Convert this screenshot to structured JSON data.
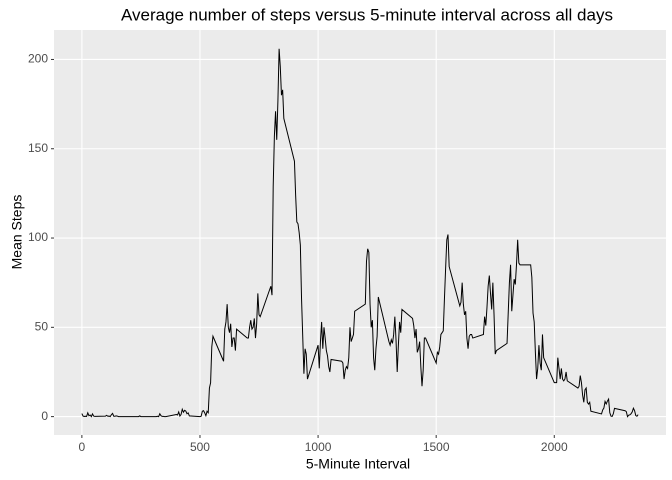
{
  "chart_data": {
    "type": "line",
    "title": "Average number of steps versus 5-minute interval across all days",
    "x_label": "5-Minute Interval",
    "y_label": "Mean Steps",
    "x": [
      0,
      5,
      10,
      15,
      20,
      25,
      30,
      35,
      40,
      45,
      50,
      55,
      100,
      105,
      110,
      115,
      120,
      125,
      130,
      135,
      140,
      145,
      150,
      155,
      200,
      205,
      210,
      215,
      220,
      225,
      230,
      235,
      240,
      245,
      250,
      255,
      300,
      305,
      310,
      315,
      320,
      325,
      330,
      335,
      340,
      345,
      350,
      355,
      400,
      405,
      410,
      415,
      420,
      425,
      430,
      435,
      440,
      445,
      450,
      455,
      500,
      505,
      510,
      515,
      520,
      525,
      530,
      535,
      540,
      545,
      550,
      555,
      600,
      605,
      610,
      615,
      620,
      625,
      630,
      635,
      640,
      645,
      650,
      655,
      700,
      705,
      710,
      715,
      720,
      725,
      730,
      735,
      740,
      745,
      750,
      755,
      800,
      805,
      810,
      815,
      820,
      825,
      830,
      835,
      840,
      845,
      850,
      855,
      900,
      905,
      910,
      915,
      920,
      925,
      930,
      935,
      940,
      945,
      950,
      955,
      1000,
      1005,
      1010,
      1015,
      1020,
      1025,
      1030,
      1035,
      1040,
      1045,
      1050,
      1055,
      1100,
      1105,
      1110,
      1115,
      1120,
      1125,
      1130,
      1135,
      1140,
      1145,
      1150,
      1155,
      1200,
      1205,
      1210,
      1215,
      1220,
      1225,
      1230,
      1235,
      1240,
      1245,
      1250,
      1255,
      1300,
      1305,
      1310,
      1315,
      1320,
      1325,
      1330,
      1335,
      1340,
      1345,
      1350,
      1355,
      1400,
      1405,
      1410,
      1415,
      1420,
      1425,
      1430,
      1435,
      1440,
      1445,
      1450,
      1455,
      1500,
      1505,
      1510,
      1515,
      1520,
      1525,
      1530,
      1535,
      1540,
      1545,
      1550,
      1555,
      1600,
      1605,
      1610,
      1615,
      1620,
      1625,
      1630,
      1635,
      1640,
      1645,
      1650,
      1655,
      1700,
      1705,
      1710,
      1715,
      1720,
      1725,
      1730,
      1735,
      1740,
      1745,
      1750,
      1755,
      1800,
      1805,
      1810,
      1815,
      1820,
      1825,
      1830,
      1835,
      1840,
      1845,
      1850,
      1855,
      1900,
      1905,
      1910,
      1915,
      1920,
      1925,
      1930,
      1935,
      1940,
      1945,
      1950,
      1955,
      2000,
      2005,
      2010,
      2015,
      2020,
      2025,
      2030,
      2035,
      2040,
      2045,
      2050,
      2055,
      2100,
      2105,
      2110,
      2115,
      2120,
      2125,
      2130,
      2135,
      2140,
      2145,
      2150,
      2155,
      2200,
      2205,
      2210,
      2215,
      2220,
      2225,
      2230,
      2235,
      2240,
      2245,
      2250,
      2255,
      2300,
      2305,
      2310,
      2315,
      2320,
      2325,
      2330,
      2335,
      2340,
      2345,
      2350,
      2355
    ],
    "values": [
      1.7,
      0.3,
      0.1,
      0.2,
      0.1,
      2.1,
      0.5,
      0.9,
      0,
      1.5,
      0.3,
      0.1,
      0.3,
      0.7,
      0.2,
      0.3,
      0,
      1.1,
      1.8,
      0.2,
      0.2,
      0.4,
      0.3,
      0,
      0,
      0,
      0,
      0,
      0,
      0,
      0,
      0,
      0,
      0.4,
      0,
      0,
      0,
      0,
      0,
      0,
      0.2,
      0,
      1.6,
      0.5,
      0.1,
      0.1,
      0,
      0,
      1.2,
      0.9,
      2.6,
      0.3,
      1.2,
      4.1,
      2.5,
      3.5,
      3.1,
      1.6,
      2.1,
      0.4,
      0,
      0.2,
      3,
      3.3,
      2.1,
      0.5,
      3,
      2.2,
      16,
      19,
      39,
      45,
      31,
      49,
      53,
      63,
      50,
      47,
      52,
      39,
      44,
      44,
      37,
      49,
      44,
      44,
      50,
      54,
      49,
      50,
      55,
      44,
      52,
      69,
      57,
      56,
      73,
      68,
      129,
      157,
      171,
      155,
      177,
      206,
      196,
      180,
      183,
      167,
      143,
      124,
      109,
      108,
      103,
      96,
      66,
      45,
      24,
      38,
      35,
      21,
      40,
      27,
      42,
      53,
      38,
      50,
      44,
      37,
      34,
      28,
      25,
      32,
      31,
      30,
      21,
      26,
      28,
      27,
      33,
      50,
      42,
      44,
      46,
      59,
      63,
      87,
      94,
      92,
      63,
      50,
      54,
      33,
      26,
      38,
      45,
      67,
      42,
      40,
      43,
      41,
      46,
      56,
      43,
      25,
      40,
      53,
      47,
      60,
      55,
      51,
      44,
      49,
      36,
      38,
      42,
      28,
      17,
      26,
      44,
      44,
      30,
      36,
      35,
      39,
      46,
      47,
      48,
      66,
      83,
      99,
      102,
      84,
      62,
      64,
      75,
      63,
      57,
      59,
      44,
      38,
      45,
      46,
      46,
      44,
      46,
      56,
      51,
      61,
      73,
      79,
      69,
      60,
      75,
      57,
      35,
      37,
      41,
      58,
      75,
      85,
      59,
      68,
      77,
      74,
      85,
      99,
      86,
      85,
      85,
      78,
      58,
      53,
      36,
      21,
      27,
      40,
      30,
      26,
      46,
      33,
      19,
      19,
      19,
      33,
      27,
      21,
      27,
      21,
      20,
      21,
      25,
      20,
      16,
      17,
      23,
      19,
      12,
      8,
      15,
      16,
      8,
      7,
      8,
      3,
      1.5,
      3.7,
      4.8,
      8.5,
      7.1,
      8.7,
      9.8,
      2.2,
      0.3,
      0.1,
      1.6,
      4.6,
      3.3,
      2.8,
      0,
      0.8,
      1,
      1.6,
      2.6,
      4.7,
      3.3,
      0.6,
      0.2,
      1.1
    ],
    "color": "#000000",
    "xlim": [
      -118,
      2473
    ],
    "xticks": [
      0,
      500,
      1000,
      1500,
      2000
    ],
    "ylim": [
      -10.3,
      216.5
    ],
    "yticks": [
      0,
      50,
      100,
      150,
      200
    ],
    "grid": true
  }
}
